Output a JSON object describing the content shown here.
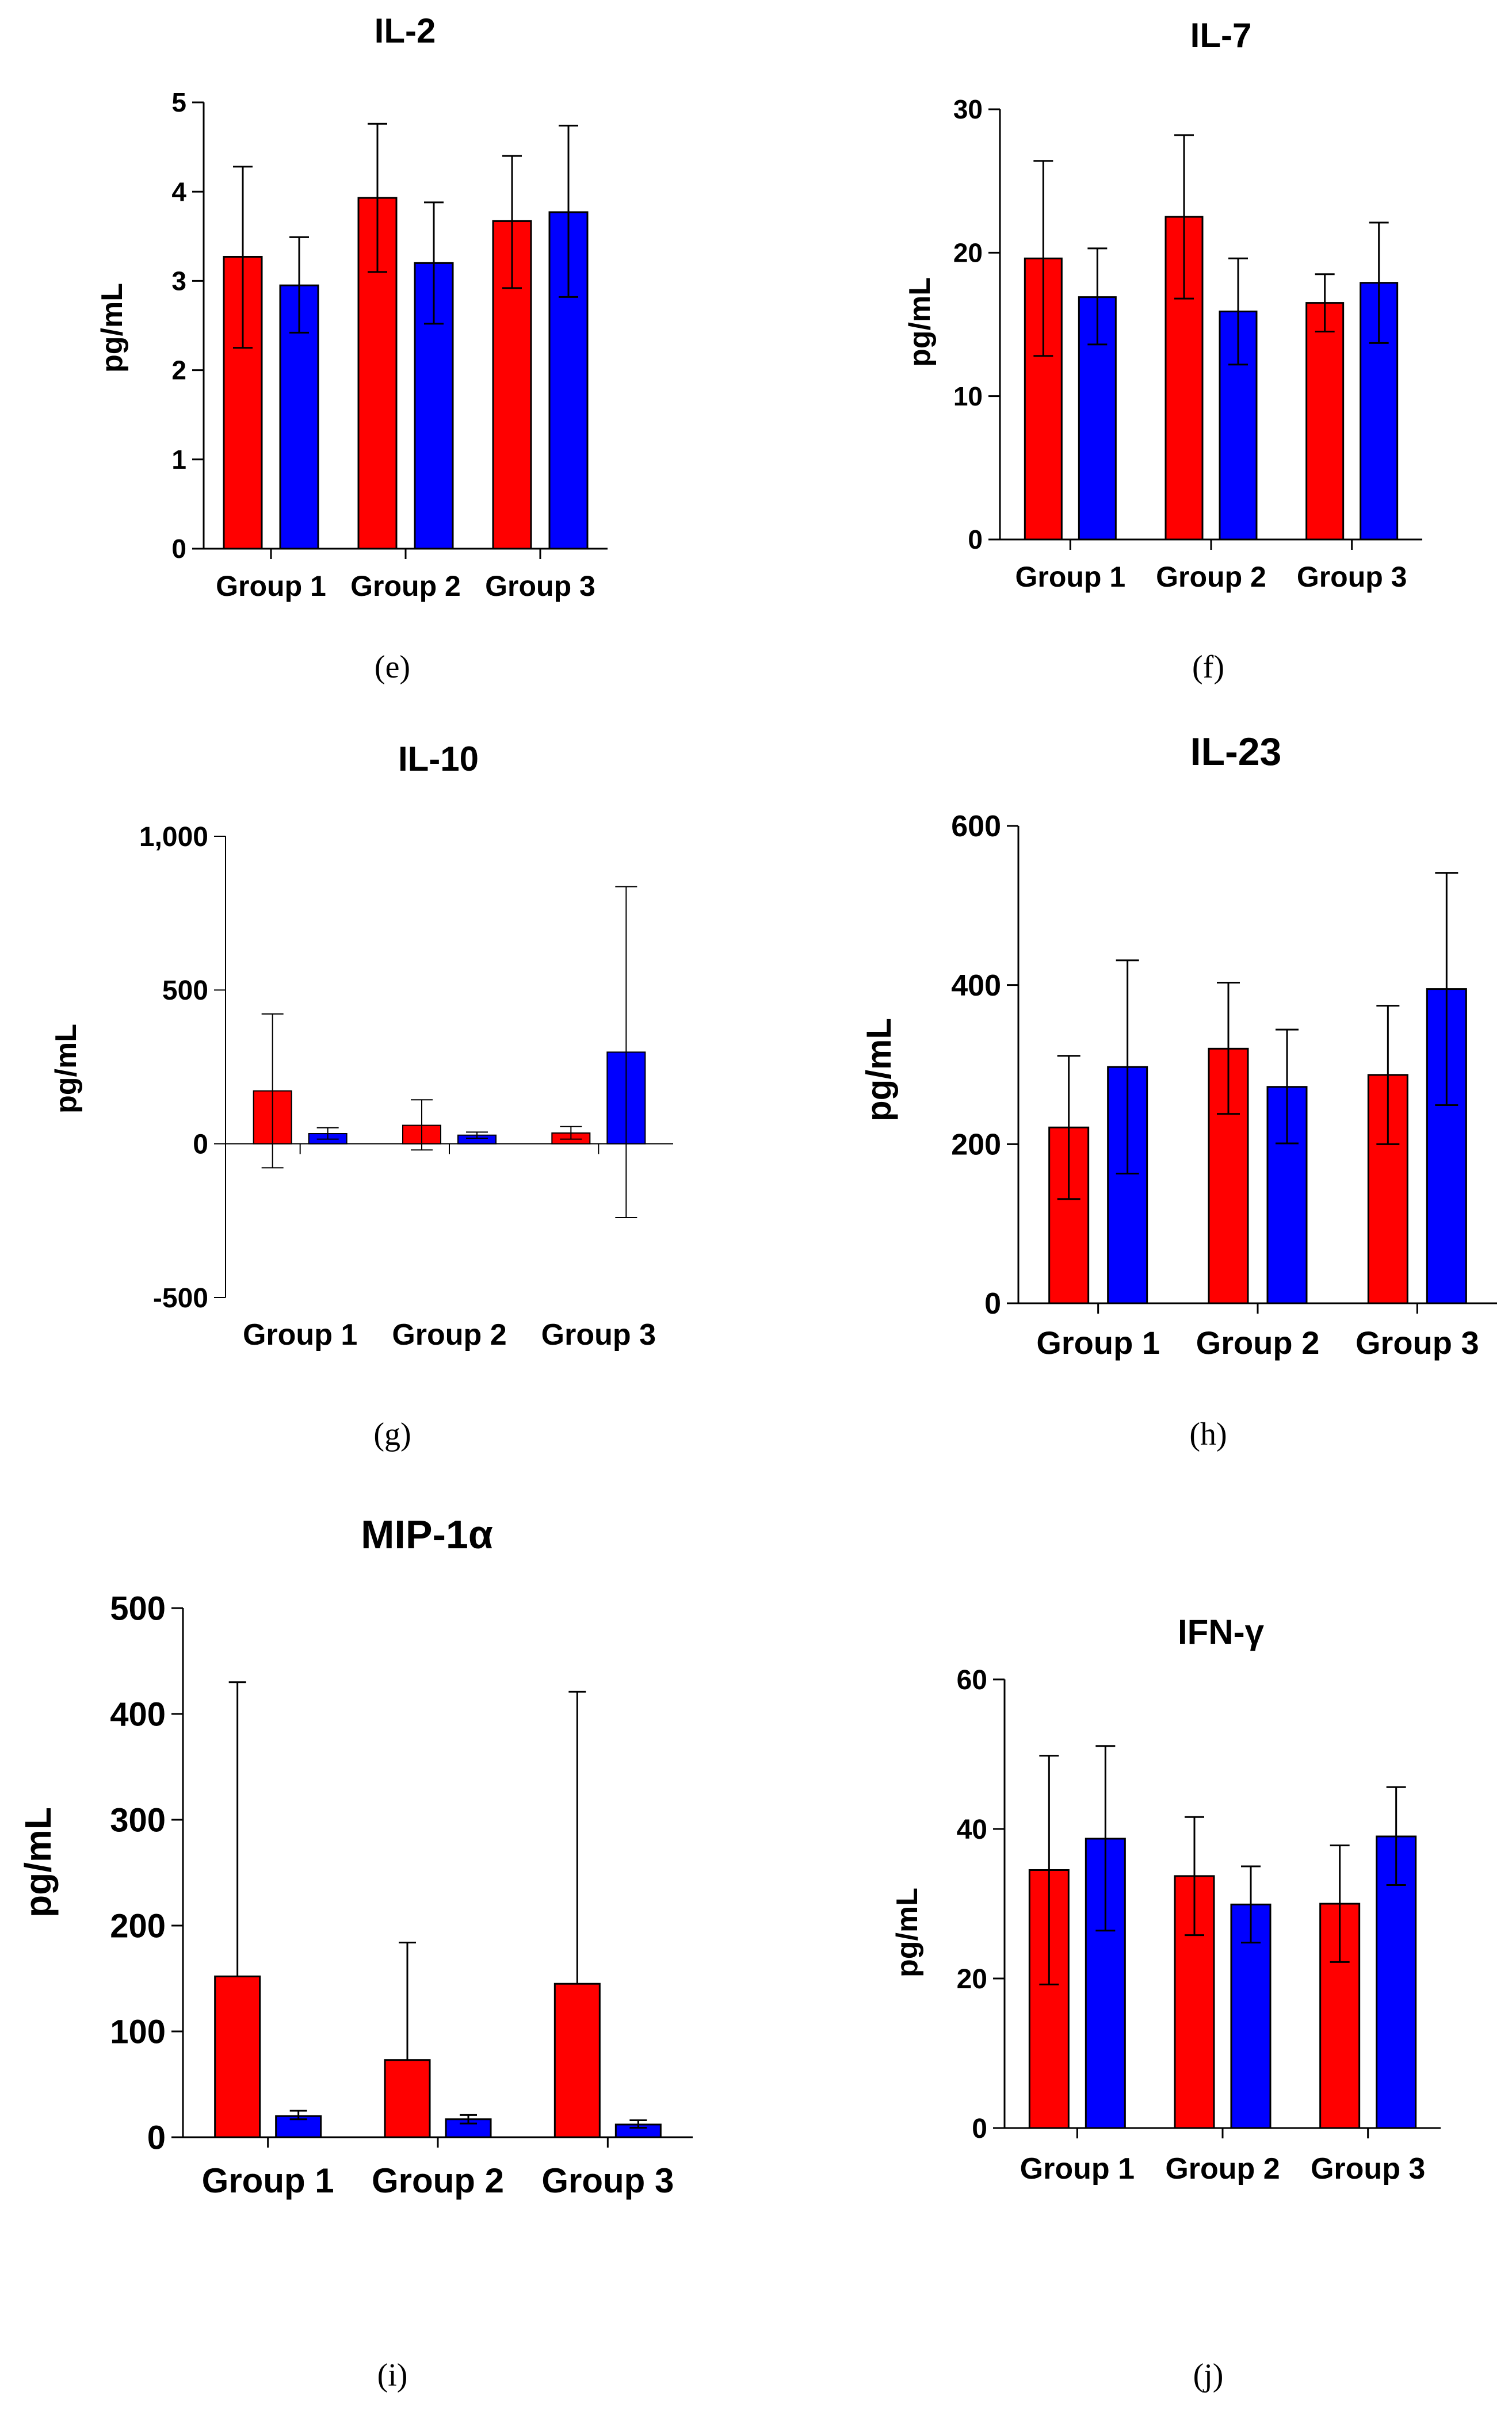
{
  "colors": {
    "series_a": "#ff0000",
    "series_b": "#0000ff",
    "axis": "#000000"
  },
  "chart_data": [
    {
      "type": "bar",
      "title": "IL-2",
      "panel_label": "(e)",
      "ylabel": "pg/mL",
      "categories": [
        "Group 1",
        "Group 2",
        "Group 3"
      ],
      "yticks": [
        0,
        1,
        2,
        3,
        4,
        5
      ],
      "ytick_labels": [
        "0",
        "1",
        "2",
        "3",
        "4",
        "5"
      ],
      "ylim": [
        0,
        5
      ],
      "series": [
        {
          "name": "red",
          "values": [
            3.27,
            3.93,
            3.67
          ],
          "err_low": [
            2.25,
            3.1,
            2.92
          ],
          "err_high": [
            4.28,
            4.76,
            4.4
          ]
        },
        {
          "name": "blue",
          "values": [
            2.95,
            3.2,
            3.77
          ],
          "err_low": [
            2.42,
            2.52,
            2.82
          ],
          "err_high": [
            3.49,
            3.88,
            4.74
          ]
        }
      ]
    },
    {
      "type": "bar",
      "title": "IL-7",
      "panel_label": "(f)",
      "ylabel": "pg/mL",
      "categories": [
        "Group 1",
        "Group 2",
        "Group 3"
      ],
      "yticks": [
        0,
        10,
        20,
        30
      ],
      "ytick_labels": [
        "0",
        "10",
        "20",
        "30"
      ],
      "ylim": [
        0,
        30
      ],
      "series": [
        {
          "name": "red",
          "values": [
            19.6,
            22.5,
            16.5
          ],
          "err_low": [
            12.8,
            16.8,
            14.5
          ],
          "err_high": [
            26.4,
            28.2,
            18.5
          ]
        },
        {
          "name": "blue",
          "values": [
            16.9,
            15.9,
            17.9
          ],
          "err_low": [
            13.6,
            12.2,
            13.7
          ],
          "err_high": [
            20.3,
            19.6,
            22.1
          ]
        }
      ]
    },
    {
      "type": "bar",
      "title": "IL-10",
      "panel_label": "(g)",
      "ylabel": "pg/mL",
      "categories": [
        "Group 1",
        "Group 2",
        "Group 3"
      ],
      "yticks": [
        -500,
        0,
        500,
        1000
      ],
      "ytick_labels": [
        "-500",
        "0",
        "500",
        "1,000"
      ],
      "ylim": [
        -500,
        1000
      ],
      "series": [
        {
          "name": "red",
          "values": [
            172,
            60,
            35
          ],
          "err_low": [
            -78,
            -20,
            15
          ],
          "err_high": [
            422,
            143,
            56
          ]
        },
        {
          "name": "blue",
          "values": [
            33,
            28,
            298
          ],
          "err_low": [
            15,
            18,
            -240
          ],
          "err_high": [
            52,
            38,
            836
          ]
        }
      ]
    },
    {
      "type": "bar",
      "title": "IL-23",
      "panel_label": "(h)",
      "ylabel": "pg/mL",
      "categories": [
        "Group 1",
        "Group 2",
        "Group 3"
      ],
      "yticks": [
        0,
        200,
        400,
        600
      ],
      "ytick_labels": [
        "0",
        "200",
        "400",
        "600"
      ],
      "ylim": [
        0,
        600
      ],
      "series": [
        {
          "name": "red",
          "values": [
            221,
            320,
            287
          ],
          "err_low": [
            131,
            238,
            200
          ],
          "err_high": [
            311,
            403,
            374
          ]
        },
        {
          "name": "blue",
          "values": [
            297,
            272,
            395
          ],
          "err_low": [
            163,
            201,
            249
          ],
          "err_high": [
            431,
            344,
            541
          ]
        }
      ]
    },
    {
      "type": "bar",
      "title": "MIP-1α",
      "panel_label": "(i)",
      "ylabel": "pg/mL",
      "categories": [
        "Group 1",
        "Group 2",
        "Group 3"
      ],
      "yticks": [
        0,
        100,
        200,
        300,
        400,
        500
      ],
      "ytick_labels": [
        "0",
        "100",
        "200",
        "300",
        "400",
        "500"
      ],
      "ylim": [
        0,
        500
      ],
      "series": [
        {
          "name": "red",
          "values": [
            152,
            73,
            145
          ],
          "err_low": [
            152,
            73,
            145
          ],
          "err_high": [
            430,
            184,
            421
          ]
        },
        {
          "name": "blue",
          "values": [
            20,
            17,
            12
          ],
          "err_low": [
            17,
            13,
            9
          ],
          "err_high": [
            25,
            21,
            16
          ]
        }
      ]
    },
    {
      "type": "bar",
      "title": "IFN-γ",
      "panel_label": "(j)",
      "ylabel": "pg/mL",
      "categories": [
        "Group 1",
        "Group 2",
        "Group 3"
      ],
      "yticks": [
        0,
        20,
        40,
        60
      ],
      "ytick_labels": [
        "0",
        "20",
        "40",
        "60"
      ],
      "ylim": [
        0,
        60
      ],
      "series": [
        {
          "name": "red",
          "values": [
            34.5,
            33.7,
            30.0
          ],
          "err_low": [
            19.2,
            25.8,
            22.2
          ],
          "err_high": [
            49.8,
            41.6,
            37.8
          ]
        },
        {
          "name": "blue",
          "values": [
            38.7,
            29.9,
            39.0
          ],
          "err_low": [
            26.4,
            24.8,
            32.5
          ],
          "err_high": [
            51.1,
            35.0,
            45.6
          ]
        }
      ]
    }
  ]
}
